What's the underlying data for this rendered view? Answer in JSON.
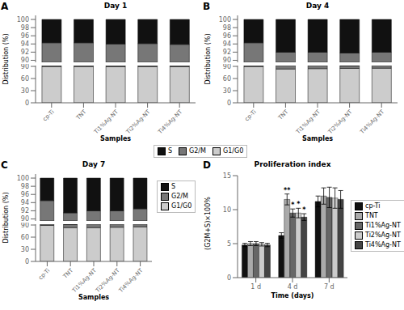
{
  "chart_data": [
    {
      "type": "bar",
      "stacked": true,
      "title": "Day 1",
      "annotations": [
        "A"
      ],
      "xlabel": "Samples",
      "ylabel": "Distribution (%)",
      "categories": [
        "cp-Ti",
        "TNT",
        "Ti1%Ag-NT",
        "Ti2%Ag-NT",
        "Ti4%Ag-NT"
      ],
      "series": [
        {
          "name": "G1/G0",
          "color": "#cccccc",
          "values": [
            89.5,
            89.5,
            89.2,
            89.3,
            89.1
          ]
        },
        {
          "name": "G2/M",
          "color": "#777777",
          "values": [
            4.8,
            4.8,
            4.8,
            4.8,
            4.8
          ]
        },
        {
          "name": "S",
          "color": "#111111",
          "values": [
            5.7,
            5.7,
            6.0,
            5.9,
            6.1
          ]
        }
      ],
      "ylim": [
        [
          0,
          92
        ],
        [
          89.5,
          101.0
        ]
      ],
      "yticks": [
        [
          0,
          30,
          60,
          90
        ],
        [
          90,
          92,
          94,
          96,
          98,
          100
        ]
      ],
      "legend": "bottom"
    },
    {
      "type": "bar",
      "stacked": true,
      "title": "Day 4",
      "annotations": [
        "B"
      ],
      "xlabel": "Samples",
      "ylabel": "Distribution (%)",
      "categories": [
        "cp-Ti",
        "TNT",
        "Ti1%Ag-NT",
        "Ti2%Ag-NT",
        "Ti4%Ag-NT"
      ],
      "series": [
        {
          "name": "G1/G0",
          "color": "#cccccc",
          "values": [
            89.5,
            83.5,
            84.5,
            85.0,
            85.5
          ]
        },
        {
          "name": "G2/M",
          "color": "#777777",
          "values": [
            4.8,
            8.5,
            7.5,
            6.8,
            6.5
          ]
        },
        {
          "name": "S",
          "color": "#111111",
          "values": [
            5.7,
            8.0,
            8.0,
            8.2,
            8.0
          ]
        }
      ],
      "ylim": [
        [
          0,
          92
        ],
        [
          89.5,
          101.0
        ]
      ],
      "yticks": [
        [
          0,
          30,
          60,
          90
        ],
        [
          90,
          92,
          94,
          96,
          98,
          100
        ]
      ]
    },
    {
      "type": "bar",
      "stacked": true,
      "title": "Day 7",
      "annotations": [
        "C"
      ],
      "xlabel": "Samples",
      "ylabel": "Distribution (%)",
      "categories": [
        "cp-Ti",
        "TNT",
        "Ti1%Ag-NT",
        "Ti2%Ag-NT",
        "Ti4%Ag-NT"
      ],
      "series": [
        {
          "name": "G1/G0",
          "color": "#cccccc",
          "values": [
            89.0,
            83.5,
            83.5,
            84.5,
            85.5
          ]
        },
        {
          "name": "G2/M",
          "color": "#777777",
          "values": [
            5.5,
            8.0,
            8.5,
            7.5,
            7.0
          ]
        },
        {
          "name": "S",
          "color": "#111111",
          "values": [
            5.5,
            8.5,
            8.0,
            8.0,
            7.5
          ]
        }
      ],
      "ylim": [
        [
          0,
          92
        ],
        [
          89.5,
          101.0
        ]
      ],
      "yticks": [
        [
          0,
          30,
          60,
          90
        ],
        [
          90,
          92,
          94,
          96,
          98,
          100
        ]
      ],
      "legend": "right"
    },
    {
      "type": "bar",
      "title": "Proliferation index",
      "annotations": [
        "D"
      ],
      "xlabel": "Time (days)",
      "ylabel": "(G2M+S)×100%",
      "categories": [
        "1 d",
        "4 d",
        "7 d"
      ],
      "series": [
        {
          "name": "cp-Ti",
          "color": "#111111",
          "values": [
            4.8,
            6.2,
            11.2
          ],
          "errors": [
            0.25,
            0.4,
            0.8
          ]
        },
        {
          "name": "TNT",
          "color": "#aaaaaa",
          "values": [
            5.0,
            11.5,
            12.0
          ],
          "errors": [
            0.3,
            0.8,
            1.2
          ],
          "annotations": [
            null,
            "**",
            null
          ]
        },
        {
          "name": "Ti1%Ag-NT",
          "color": "#666666",
          "values": [
            5.0,
            9.5,
            11.8
          ],
          "errors": [
            0.3,
            0.6,
            1.5
          ],
          "annotations": [
            null,
            "*",
            null
          ]
        },
        {
          "name": "Ti2%Ag-NT",
          "color": "#cccccc",
          "values": [
            4.9,
            9.5,
            11.7
          ],
          "errors": [
            0.25,
            0.7,
            1.5
          ],
          "annotations": [
            null,
            "*",
            null
          ]
        },
        {
          "name": "Ti4%Ag-NT",
          "color": "#444444",
          "values": [
            4.8,
            8.9,
            11.5
          ],
          "errors": [
            0.25,
            0.5,
            1.3
          ],
          "annotations": [
            null,
            "*",
            null
          ]
        }
      ],
      "ylim": [
        0,
        15
      ],
      "yticks": [
        0,
        5,
        10,
        15
      ],
      "legend": "right"
    }
  ]
}
